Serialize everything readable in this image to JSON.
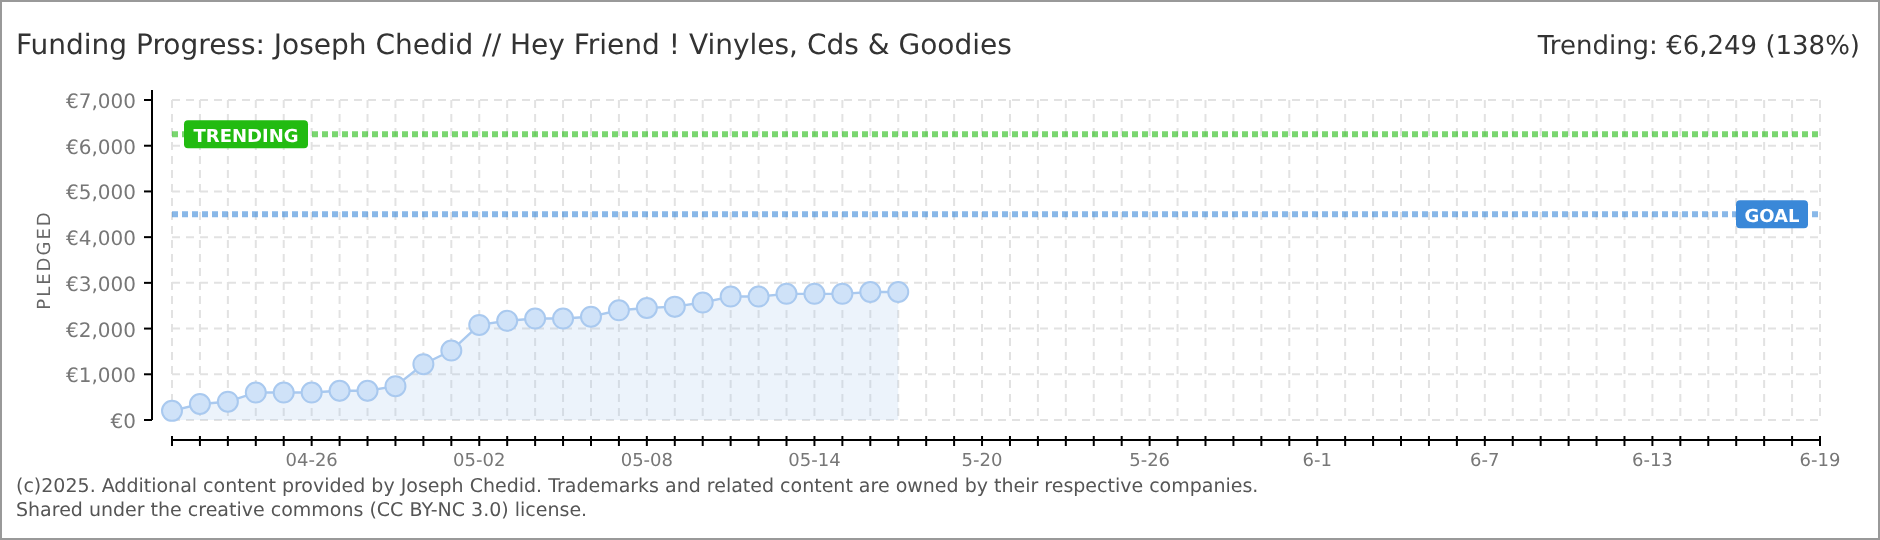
{
  "chart_data": {
    "type": "area",
    "title": "Funding Progress: Joseph Chedid // Hey Friend ! Vinyles, Cds & Goodies",
    "subtitle": "Trending: €6,249 (138%)",
    "ylabel": "PLEDGED",
    "x": [
      "--04-21",
      "--04-22",
      "--04-23",
      "--04-24",
      "--04-25",
      "--04-26",
      "--04-27",
      "--04-28",
      "--04-29",
      "--04-30",
      "--05-01",
      "--05-02",
      "--05-03",
      "--05-04",
      "--05-05",
      "--05-06",
      "--05-07",
      "--05-08",
      "--05-09",
      "--05-10",
      "--05-11",
      "--05-12",
      "--05-13",
      "--05-14",
      "--05-15",
      "--05-16",
      "--05-17"
    ],
    "series": [
      {
        "color": "#a9c9ef",
        "values": [
          200,
          350,
          400,
          600,
          600,
          600,
          640,
          640,
          740,
          1220,
          1520,
          2080,
          2170,
          2220,
          2220,
          2260,
          2400,
          2450,
          2480,
          2570,
          2700,
          2700,
          2760,
          2760,
          2760,
          2800,
          2800
        ]
      }
    ],
    "marker": "circle",
    "xlim": [
      "--04-21",
      "--06-19"
    ],
    "xticks": [
      {
        "value": "--04-21",
        "label": null
      },
      {
        "value": "--04-22",
        "label": null
      },
      {
        "value": "--04-23",
        "label": null
      },
      {
        "value": "--04-24",
        "label": null
      },
      {
        "value": "--04-25",
        "label": null
      },
      {
        "value": "--04-26",
        "label": "04-26"
      },
      {
        "value": "--04-27",
        "label": null
      },
      {
        "value": "--04-28",
        "label": null
      },
      {
        "value": "--04-29",
        "label": null
      },
      {
        "value": "--04-30",
        "label": null
      },
      {
        "value": "--05-01",
        "label": null
      },
      {
        "value": "--05-02",
        "label": "05-02"
      },
      {
        "value": "--05-03",
        "label": null
      },
      {
        "value": "--05-04",
        "label": null
      },
      {
        "value": "--05-05",
        "label": null
      },
      {
        "value": "--05-06",
        "label": null
      },
      {
        "value": "--05-07",
        "label": null
      },
      {
        "value": "--05-08",
        "label": "05-08"
      },
      {
        "value": "--05-09",
        "label": null
      },
      {
        "value": "--05-10",
        "label": null
      },
      {
        "value": "--05-11",
        "label": null
      },
      {
        "value": "--05-12",
        "label": null
      },
      {
        "value": "--05-13",
        "label": null
      },
      {
        "value": "--05-14",
        "label": "05-14"
      },
      {
        "value": "--05-15",
        "label": null
      },
      {
        "value": "--05-16",
        "label": null
      },
      {
        "value": "--05-17",
        "label": null
      },
      {
        "value": "--05-18",
        "label": null
      },
      {
        "value": "--05-19",
        "label": null
      },
      {
        "value": "--05-20",
        "label": "5-20"
      },
      {
        "value": "--05-21",
        "label": null
      },
      {
        "value": "--05-22",
        "label": null
      },
      {
        "value": "--05-23",
        "label": null
      },
      {
        "value": "--05-24",
        "label": null
      },
      {
        "value": "--05-25",
        "label": null
      },
      {
        "value": "--05-26",
        "label": "5-26"
      },
      {
        "value": "--05-27",
        "label": null
      },
      {
        "value": "--05-28",
        "label": null
      },
      {
        "value": "--05-29",
        "label": null
      },
      {
        "value": "--05-30",
        "label": null
      },
      {
        "value": "--05-31",
        "label": null
      },
      {
        "value": "--06-01",
        "label": "6-1"
      },
      {
        "value": "--06-02",
        "label": null
      },
      {
        "value": "--06-03",
        "label": null
      },
      {
        "value": "--06-04",
        "label": null
      },
      {
        "value": "--06-05",
        "label": null
      },
      {
        "value": "--06-06",
        "label": null
      },
      {
        "value": "--06-07",
        "label": "6-7"
      },
      {
        "value": "--06-08",
        "label": null
      },
      {
        "value": "--06-09",
        "label": null
      },
      {
        "value": "--06-10",
        "label": null
      },
      {
        "value": "--06-11",
        "label": null
      },
      {
        "value": "--06-12",
        "label": null
      },
      {
        "value": "--06-13",
        "label": "6-13"
      },
      {
        "value": "--06-14",
        "label": null
      },
      {
        "value": "--06-15",
        "label": null
      },
      {
        "value": "--06-16",
        "label": null
      },
      {
        "value": "--06-17",
        "label": null
      },
      {
        "value": "--06-18",
        "label": null
      },
      {
        "value": "--06-19",
        "label": "6-19"
      }
    ],
    "ylim": [
      0,
      7000
    ],
    "yticks": [
      {
        "value": 0,
        "label": "€0"
      },
      {
        "value": 1000,
        "label": "€1,000"
      },
      {
        "value": 2000,
        "label": "€2,000"
      },
      {
        "value": 3000,
        "label": "€3,000"
      },
      {
        "value": 4000,
        "label": "€4,000"
      },
      {
        "value": 5000,
        "label": "€5,000"
      },
      {
        "value": 6000,
        "label": "€6,000"
      },
      {
        "value": 7000,
        "label": "€7,000"
      }
    ],
    "grid": true,
    "ref_lines": [
      {
        "axis": "y",
        "value": 6249,
        "label": "TRENDING",
        "color": "#22bb11",
        "line_style": "dotted"
      },
      {
        "axis": "y",
        "value": 4500,
        "label": "GOAL",
        "color": "#3a88d8",
        "line_style": "dotted"
      }
    ],
    "annotations": [
      "(c)2025. Additional content provided by Joseph Chedid. Trademarks and related content are owned by their respective companies.",
      "Shared under the creative commons (CC BY-NC 3.0) license."
    ]
  }
}
